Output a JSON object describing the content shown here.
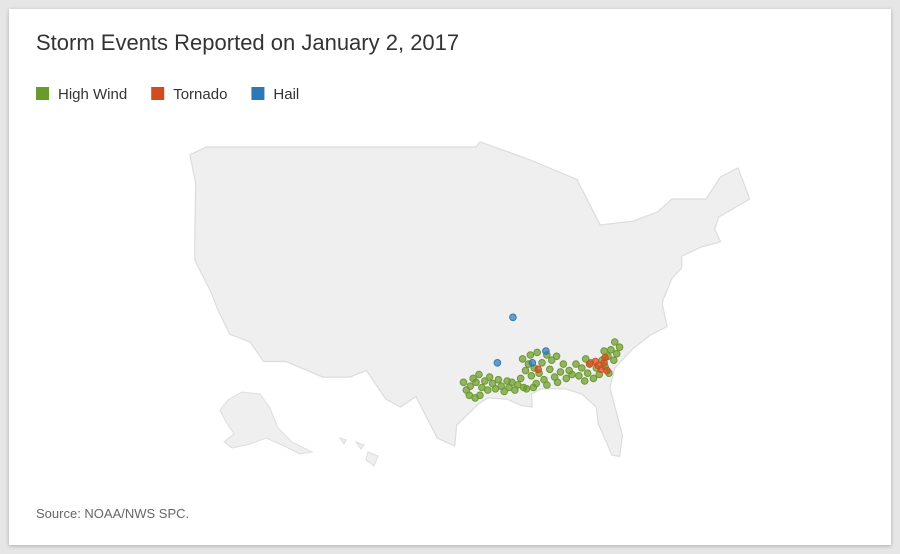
{
  "chart_data": {
    "type": "point-map",
    "title": "Storm Events Reported on January 2, 2017",
    "source": "Source: NOAA/NWS SPC.",
    "series": [
      {
        "name": "High Wind",
        "color": "#6b9a2c",
        "points": [
          [
            -95.8,
            30.6
          ],
          [
            -95.5,
            31.2
          ],
          [
            -95.2,
            30.9
          ],
          [
            -94.9,
            31.5
          ],
          [
            -94.6,
            30.5
          ],
          [
            -94.3,
            31.0
          ],
          [
            -94.0,
            30.3
          ],
          [
            -93.8,
            31.3
          ],
          [
            -93.5,
            30.8
          ],
          [
            -93.2,
            30.4
          ],
          [
            -92.9,
            31.1
          ],
          [
            -92.6,
            30.6
          ],
          [
            -92.3,
            30.2
          ],
          [
            -92.0,
            31.0
          ],
          [
            -91.8,
            30.5
          ],
          [
            -91.5,
            30.9
          ],
          [
            -91.2,
            30.3
          ],
          [
            -90.9,
            30.7
          ],
          [
            -90.6,
            31.2
          ],
          [
            -90.3,
            30.5
          ],
          [
            -95.9,
            29.9
          ],
          [
            -95.3,
            29.7
          ],
          [
            -94.8,
            29.9
          ],
          [
            -96.2,
            30.3
          ],
          [
            -96.5,
            30.9
          ],
          [
            -90.1,
            31.8
          ],
          [
            -89.8,
            32.3
          ],
          [
            -89.5,
            31.4
          ],
          [
            -89.2,
            32.0
          ],
          [
            -89.0,
            30.8
          ],
          [
            -88.7,
            31.6
          ],
          [
            -88.4,
            32.4
          ],
          [
            -88.2,
            31.1
          ],
          [
            -87.9,
            30.7
          ],
          [
            -87.6,
            31.9
          ],
          [
            -87.4,
            32.6
          ],
          [
            -87.1,
            31.3
          ],
          [
            -86.8,
            30.9
          ],
          [
            -86.5,
            31.7
          ],
          [
            -86.2,
            32.3
          ],
          [
            -85.9,
            31.2
          ],
          [
            -85.6,
            31.8
          ],
          [
            -90.4,
            32.7
          ],
          [
            -89.6,
            33.0
          ],
          [
            -88.9,
            33.2
          ],
          [
            -87.9,
            33.0
          ],
          [
            -86.9,
            32.9
          ],
          [
            -85.3,
            31.5
          ],
          [
            -90.0,
            30.4
          ],
          [
            -89.3,
            30.5
          ],
          [
            -84.6,
            31.4
          ],
          [
            -84.3,
            32.0
          ],
          [
            -84.0,
            31.0
          ],
          [
            -83.7,
            31.6
          ],
          [
            -83.4,
            32.4
          ],
          [
            -83.1,
            31.2
          ],
          [
            -82.8,
            32.0
          ],
          [
            -82.5,
            31.5
          ],
          [
            -82.2,
            32.6
          ],
          [
            -81.9,
            32.1
          ],
          [
            -81.6,
            32.9
          ],
          [
            -81.3,
            33.4
          ],
          [
            -81.0,
            32.6
          ],
          [
            -80.7,
            33.1
          ],
          [
            -80.4,
            33.6
          ],
          [
            -82.0,
            33.3
          ],
          [
            -83.9,
            32.7
          ],
          [
            -81.5,
            31.6
          ],
          [
            -80.9,
            34.0
          ],
          [
            -84.9,
            32.3
          ]
        ]
      },
      {
        "name": "Tornado",
        "color": "#d24d1e",
        "points": [
          [
            -83.5,
            32.3
          ],
          [
            -82.6,
            32.2
          ],
          [
            -82.3,
            31.9
          ],
          [
            -82.0,
            32.4
          ],
          [
            -81.7,
            31.8
          ],
          [
            -81.9,
            32.8
          ],
          [
            -88.8,
            31.9
          ],
          [
            -82.9,
            32.5
          ]
        ]
      },
      {
        "name": "Hail",
        "color": "#2f78b7",
        "points": [
          [
            -91.4,
            35.9
          ],
          [
            -93.0,
            32.4
          ],
          [
            -88.0,
            33.3
          ],
          [
            -89.4,
            32.4
          ]
        ]
      }
    ]
  }
}
